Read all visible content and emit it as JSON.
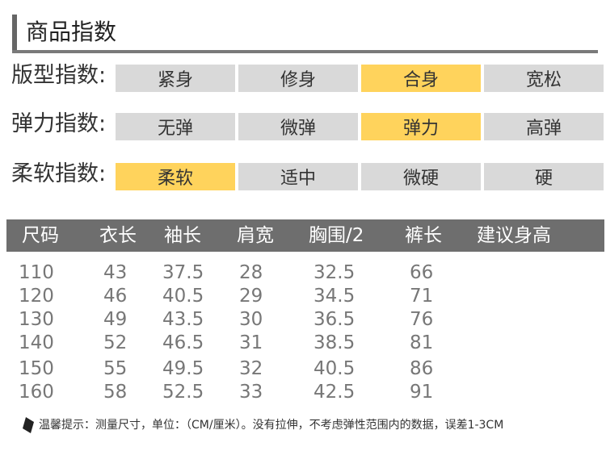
{
  "header": {
    "title": "商品指数"
  },
  "indices": [
    {
      "label": "版型指数:",
      "options": [
        "紧身",
        "修身",
        "合身",
        "宽松"
      ],
      "selected": "合身"
    },
    {
      "label": "弹力指数:",
      "options": [
        "无弹",
        "微弹",
        "弹力",
        "高弹"
      ],
      "selected": "弹力"
    },
    {
      "label": "柔软指数:",
      "options": [
        "柔软",
        "适中",
        "微硬",
        "硬"
      ],
      "selected": "柔软"
    }
  ],
  "colors": {
    "highlight": "#ffd35c",
    "cell": "#d9d9d9",
    "header_bg": "#6e6e6e",
    "title_line": "#7a7a7a"
  },
  "size_table": {
    "headers": [
      "尺码",
      "衣长",
      "袖长",
      "肩宽",
      "胸围/2",
      "裤长",
      "建议身高"
    ],
    "rows": [
      [
        "110",
        "43",
        "37.5",
        "28",
        "32.5",
        "66",
        ""
      ],
      [
        "120",
        "46",
        "40.5",
        "29",
        "34.5",
        "71",
        ""
      ],
      [
        "130",
        "49",
        "43.5",
        "30",
        "36.5",
        "76",
        ""
      ],
      [
        "140",
        "52",
        "46.5",
        "31",
        "38.5",
        "81",
        ""
      ],
      [
        "150",
        "55",
        "49.5",
        "32",
        "40.5",
        "86",
        ""
      ],
      [
        "160",
        "58",
        "52.5",
        "33",
        "42.5",
        "91",
        ""
      ]
    ]
  },
  "note": {
    "icon": "pencil-icon",
    "text": "温馨提示：测量尺寸，单位：（CM/厘米）。没有拉伸，不考虑弹性范围内的数据，误差1-3CM"
  }
}
